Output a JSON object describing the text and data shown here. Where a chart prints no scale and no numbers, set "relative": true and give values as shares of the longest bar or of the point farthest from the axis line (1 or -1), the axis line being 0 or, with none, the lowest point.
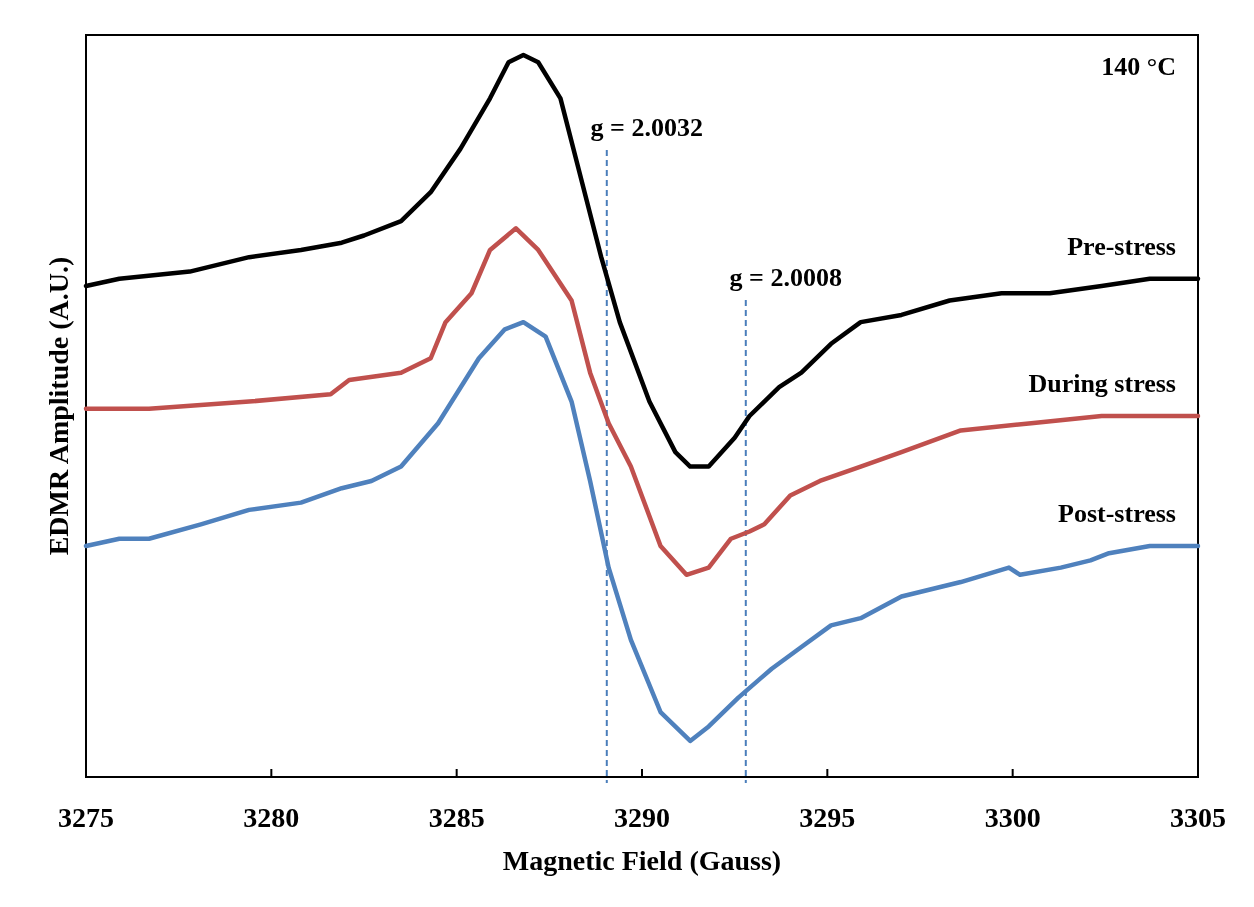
{
  "chart_data": {
    "type": "line",
    "relative": true,
    "xlabel": "Magnetic Field (Gauss)",
    "ylabel": "EDMR Amplitude (A.U.)",
    "xlim": [
      3275,
      3305
    ],
    "xticks": [
      3275,
      3280,
      3285,
      3290,
      3295,
      3300,
      3305
    ],
    "legend": false,
    "grid": false,
    "marker": "none",
    "line_style": "solid",
    "annotations": [
      "140 °C",
      "g = 2.0032",
      "g = 2.0008"
    ],
    "ref_lines": [
      {
        "axis": "x",
        "value": 3289.05,
        "color": "#4a7ebb",
        "line_style": "dashed"
      },
      {
        "axis": "x",
        "value": 3292.8,
        "color": "#4a7ebb",
        "line_style": "dashed"
      }
    ],
    "series": [
      {
        "name": "Pre-stress",
        "color": "#000000",
        "x": [
          3275.0,
          3275.9,
          3277.8,
          3279.4,
          3280.8,
          3281.9,
          3282.5,
          3283.5,
          3284.3,
          3285.1,
          3285.9,
          3286.4,
          3286.8,
          3287.2,
          3287.8,
          3288.3,
          3288.9,
          3289.4,
          3290.2,
          3290.9,
          3291.3,
          3291.8,
          3292.5,
          3292.9,
          3293.7,
          3294.3,
          3295.1,
          3295.9,
          3297.0,
          3298.3,
          3299.7,
          3301.0,
          3302.4,
          3303.7,
          3305.0
        ],
        "values": [
          0.68,
          0.69,
          0.7,
          0.72,
          0.73,
          0.74,
          0.75,
          0.77,
          0.81,
          0.87,
          0.94,
          0.99,
          1.0,
          0.99,
          0.94,
          0.84,
          0.72,
          0.63,
          0.52,
          0.45,
          0.43,
          0.43,
          0.47,
          0.5,
          0.54,
          0.56,
          0.6,
          0.63,
          0.64,
          0.66,
          0.67,
          0.67,
          0.68,
          0.69,
          0.69
        ]
      },
      {
        "name": "During stress",
        "color": "#c0504d",
        "x": [
          3275.0,
          3276.7,
          3279.4,
          3281.6,
          3282.1,
          3283.5,
          3284.3,
          3284.7,
          3285.4,
          3285.9,
          3286.6,
          3287.2,
          3288.1,
          3288.6,
          3289.1,
          3289.7,
          3290.5,
          3291.2,
          3291.8,
          3292.4,
          3292.9,
          3293.3,
          3294.0,
          3294.8,
          3295.9,
          3297.0,
          3298.6,
          3300.5,
          3302.4,
          3305.0
        ],
        "values": [
          0.51,
          0.51,
          0.52,
          0.53,
          0.55,
          0.56,
          0.58,
          0.63,
          0.67,
          0.73,
          0.76,
          0.73,
          0.66,
          0.56,
          0.49,
          0.43,
          0.32,
          0.28,
          0.29,
          0.33,
          0.34,
          0.35,
          0.39,
          0.41,
          0.43,
          0.45,
          0.48,
          0.49,
          0.5,
          0.5
        ]
      },
      {
        "name": "Post-stress",
        "color": "#4f81bd",
        "x": [
          3275.0,
          3275.9,
          3276.7,
          3278.1,
          3279.4,
          3280.8,
          3281.9,
          3282.7,
          3283.5,
          3284.5,
          3285.6,
          3286.3,
          3286.8,
          3287.4,
          3288.1,
          3288.6,
          3289.1,
          3289.7,
          3290.5,
          3291.3,
          3291.8,
          3292.6,
          3293.5,
          3294.3,
          3295.1,
          3295.9,
          3297.0,
          3298.6,
          3299.9,
          3300.2,
          3301.3,
          3302.1,
          3302.6,
          3303.7,
          3305.0
        ],
        "values": [
          0.32,
          0.33,
          0.33,
          0.35,
          0.37,
          0.38,
          0.4,
          0.41,
          0.43,
          0.49,
          0.58,
          0.62,
          0.63,
          0.61,
          0.52,
          0.41,
          0.29,
          0.19,
          0.09,
          0.05,
          0.07,
          0.11,
          0.15,
          0.18,
          0.21,
          0.22,
          0.25,
          0.27,
          0.29,
          0.28,
          0.29,
          0.3,
          0.31,
          0.32,
          0.32
        ]
      }
    ]
  }
}
